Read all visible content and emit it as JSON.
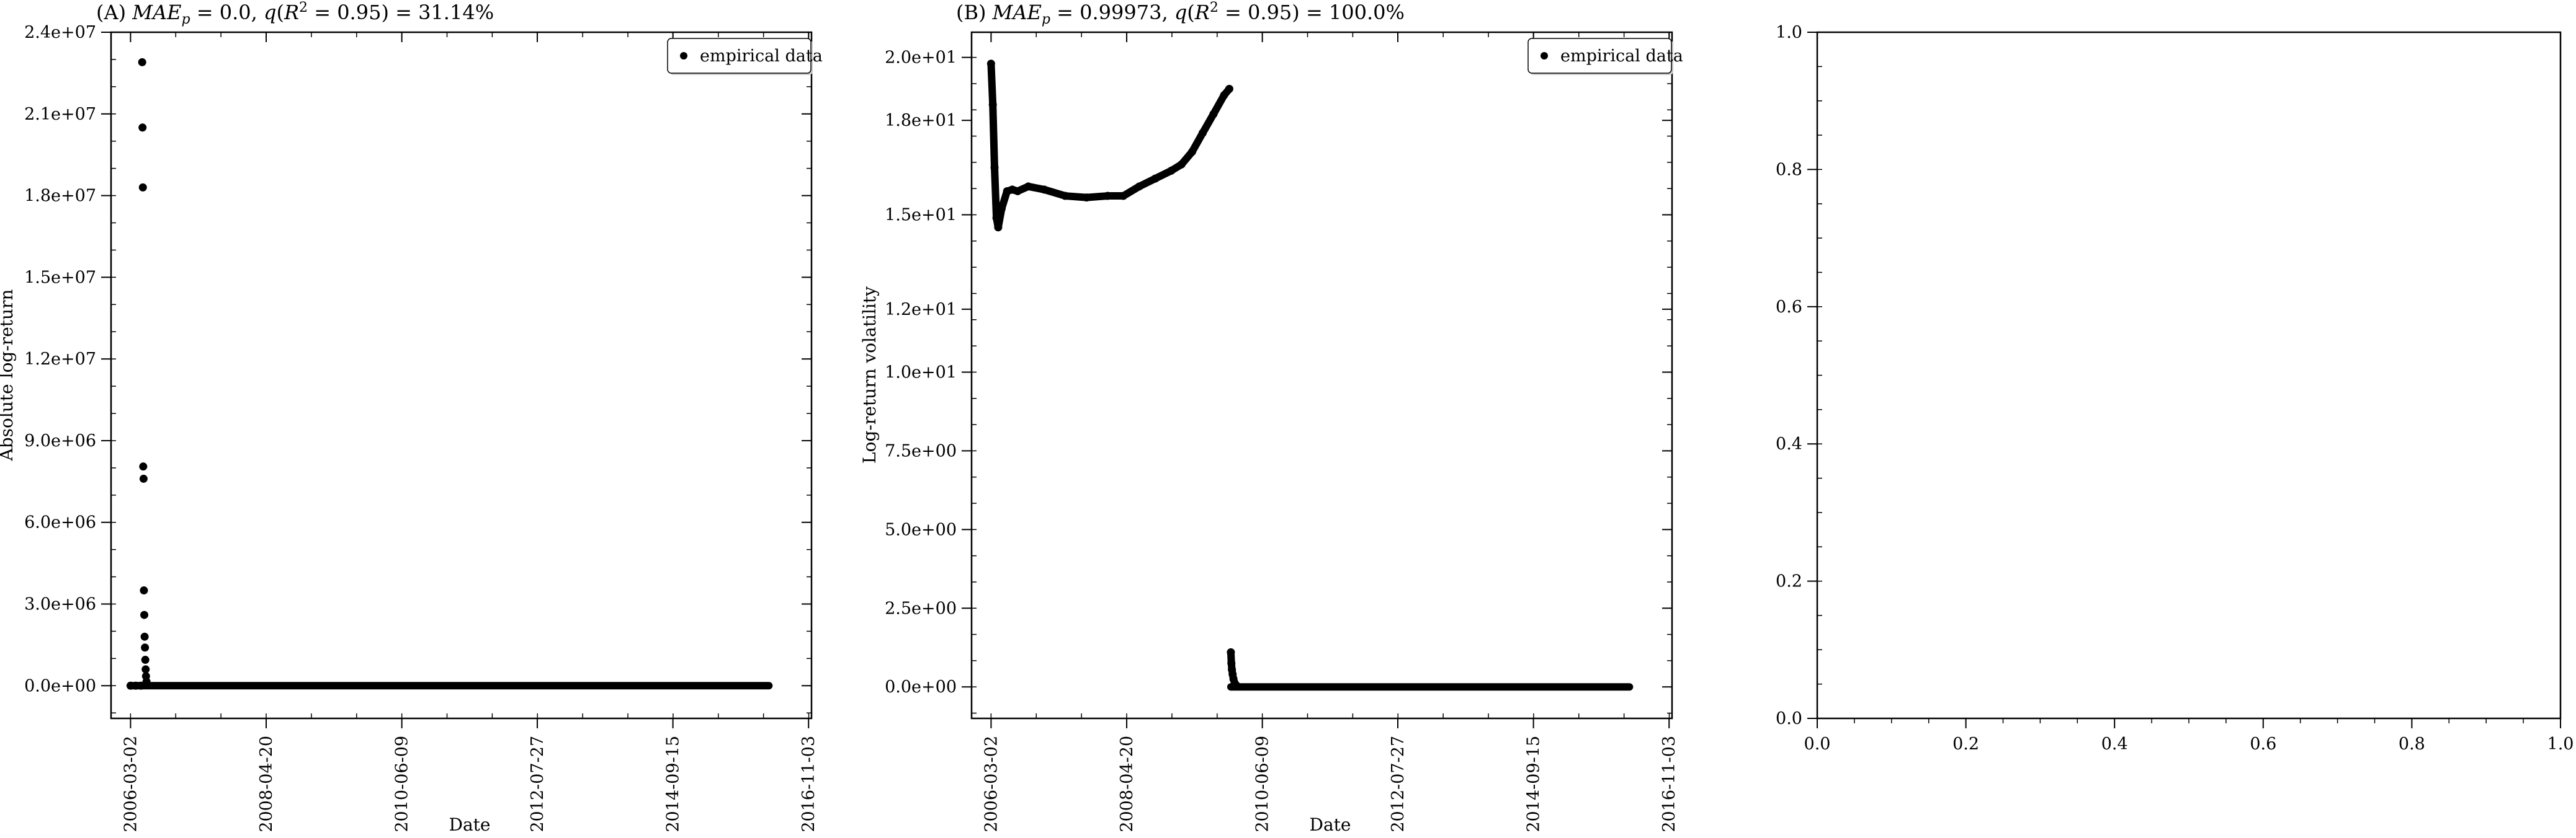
{
  "chart_data": [
    {
      "type": "scatter",
      "title": "(A) MAE_p = 0.0, q(R² = 0.95) = 31.14%",
      "xlabel": "Date",
      "ylabel": "Absolute log-return",
      "x_tick_labels": [
        "2006-03-02",
        "2008-04-20",
        "2010-06-09",
        "2012-07-27",
        "2014-09-15",
        "2016-11-03"
      ],
      "y_tick_labels": [
        "0.0e+00",
        "3.0e+06",
        "6.0e+06",
        "9.0e+06",
        "1.2e+07",
        "1.5e+07",
        "1.8e+07",
        "2.1e+07",
        "2.4e+07"
      ],
      "x_range": [
        "2005-11-10",
        "2016-11-20"
      ],
      "ylim": [
        -1200000,
        24000000
      ],
      "legend": {
        "entries": [
          "empirical data"
        ],
        "location": "upper-right"
      },
      "series": [
        {
          "name": "empirical data",
          "color": "#000000",
          "points": [
            {
              "x": "2006-03-02",
              "y": 0
            },
            {
              "x": "2006-04-01",
              "y": 0
            },
            {
              "x": "2006-05-01",
              "y": 0
            },
            {
              "x": "2006-05-08",
              "y": 22900000
            },
            {
              "x": "2006-05-10",
              "y": 20500000
            },
            {
              "x": "2006-05-12",
              "y": 18300000
            },
            {
              "x": "2006-05-14",
              "y": 8050000
            },
            {
              "x": "2006-05-16",
              "y": 7600000
            },
            {
              "x": "2006-05-18",
              "y": 3500000
            },
            {
              "x": "2006-05-20",
              "y": 2600000
            },
            {
              "x": "2006-05-22",
              "y": 1800000
            },
            {
              "x": "2006-05-24",
              "y": 1400000
            },
            {
              "x": "2006-05-26",
              "y": 950000
            },
            {
              "x": "2006-05-28",
              "y": 600000
            },
            {
              "x": "2006-05-30",
              "y": 350000
            },
            {
              "x": "2006-06-02",
              "y": 150000
            },
            {
              "x": "2006-06-05",
              "y": 50000
            }
          ],
          "flat_segment": {
            "from": "2006-03-02",
            "to": "2016-03-20",
            "y": 0
          }
        }
      ]
    },
    {
      "type": "scatter",
      "title": "(B) MAE_p = 0.99973, q(R² = 0.95) = 100.0%",
      "xlabel": "Date",
      "ylabel": "Log-return volatility",
      "x_tick_labels": [
        "2006-03-02",
        "2008-04-20",
        "2010-06-09",
        "2012-07-27",
        "2014-09-15",
        "2016-11-03"
      ],
      "y_tick_labels": [
        "0.0e+00",
        "2.5e+00",
        "5.0e+00",
        "7.5e+00",
        "1.0e+01",
        "1.2e+01",
        "1.5e+01",
        "1.8e+01",
        "2.0e+01"
      ],
      "x_range": [
        "2005-11-10",
        "2016-11-20"
      ],
      "ylim": [
        -1.0,
        20.8
      ],
      "legend": {
        "entries": [
          "empirical data"
        ],
        "location": "upper-right"
      },
      "series": [
        {
          "name": "empirical data",
          "color": "#000000",
          "points": [
            {
              "x": "2006-03-02",
              "y": 19.8
            },
            {
              "x": "2006-03-12",
              "y": 18.5
            },
            {
              "x": "2006-03-22",
              "y": 16.5
            },
            {
              "x": "2006-04-02",
              "y": 14.9
            },
            {
              "x": "2006-04-12",
              "y": 14.6
            },
            {
              "x": "2006-05-02",
              "y": 15.2
            },
            {
              "x": "2006-06-02",
              "y": 15.75
            },
            {
              "x": "2006-07-02",
              "y": 15.8
            },
            {
              "x": "2006-08-02",
              "y": 15.75
            },
            {
              "x": "2006-10-02",
              "y": 15.9
            },
            {
              "x": "2007-01-02",
              "y": 15.8
            },
            {
              "x": "2007-05-02",
              "y": 15.6
            },
            {
              "x": "2007-09-02",
              "y": 15.55
            },
            {
              "x": "2008-01-02",
              "y": 15.6
            },
            {
              "x": "2008-04-01",
              "y": 15.6
            },
            {
              "x": "2008-07-01",
              "y": 15.9
            },
            {
              "x": "2008-10-01",
              "y": 16.15
            },
            {
              "x": "2009-01-01",
              "y": 16.4
            },
            {
              "x": "2009-03-01",
              "y": 16.6
            },
            {
              "x": "2009-05-01",
              "y": 17.0
            },
            {
              "x": "2009-07-01",
              "y": 17.6
            },
            {
              "x": "2009-09-01",
              "y": 18.2
            },
            {
              "x": "2009-11-01",
              "y": 18.8
            },
            {
              "x": "2009-12-01",
              "y": 19.0
            },
            {
              "x": "2009-12-10",
              "y": 1.1
            },
            {
              "x": "2009-12-13",
              "y": 0.75
            },
            {
              "x": "2009-12-16",
              "y": 0.55
            },
            {
              "x": "2009-12-20",
              "y": 0.4
            },
            {
              "x": "2009-12-25",
              "y": 0.25
            },
            {
              "x": "2010-01-01",
              "y": 0.12
            },
            {
              "x": "2010-01-10",
              "y": 0.05
            }
          ],
          "flat_segment": {
            "from": "2009-12-10",
            "to": "2016-03-20",
            "y": 0
          }
        }
      ]
    },
    {
      "type": "scatter",
      "title": "",
      "xlabel": "",
      "ylabel": "",
      "x_tick_labels": [
        "0.0",
        "0.2",
        "0.4",
        "0.6",
        "0.8",
        "1.0"
      ],
      "y_tick_labels": [
        "0.0",
        "0.2",
        "0.4",
        "0.6",
        "0.8",
        "1.0"
      ],
      "xlim": [
        0,
        1
      ],
      "ylim": [
        0,
        1
      ],
      "series": []
    }
  ]
}
